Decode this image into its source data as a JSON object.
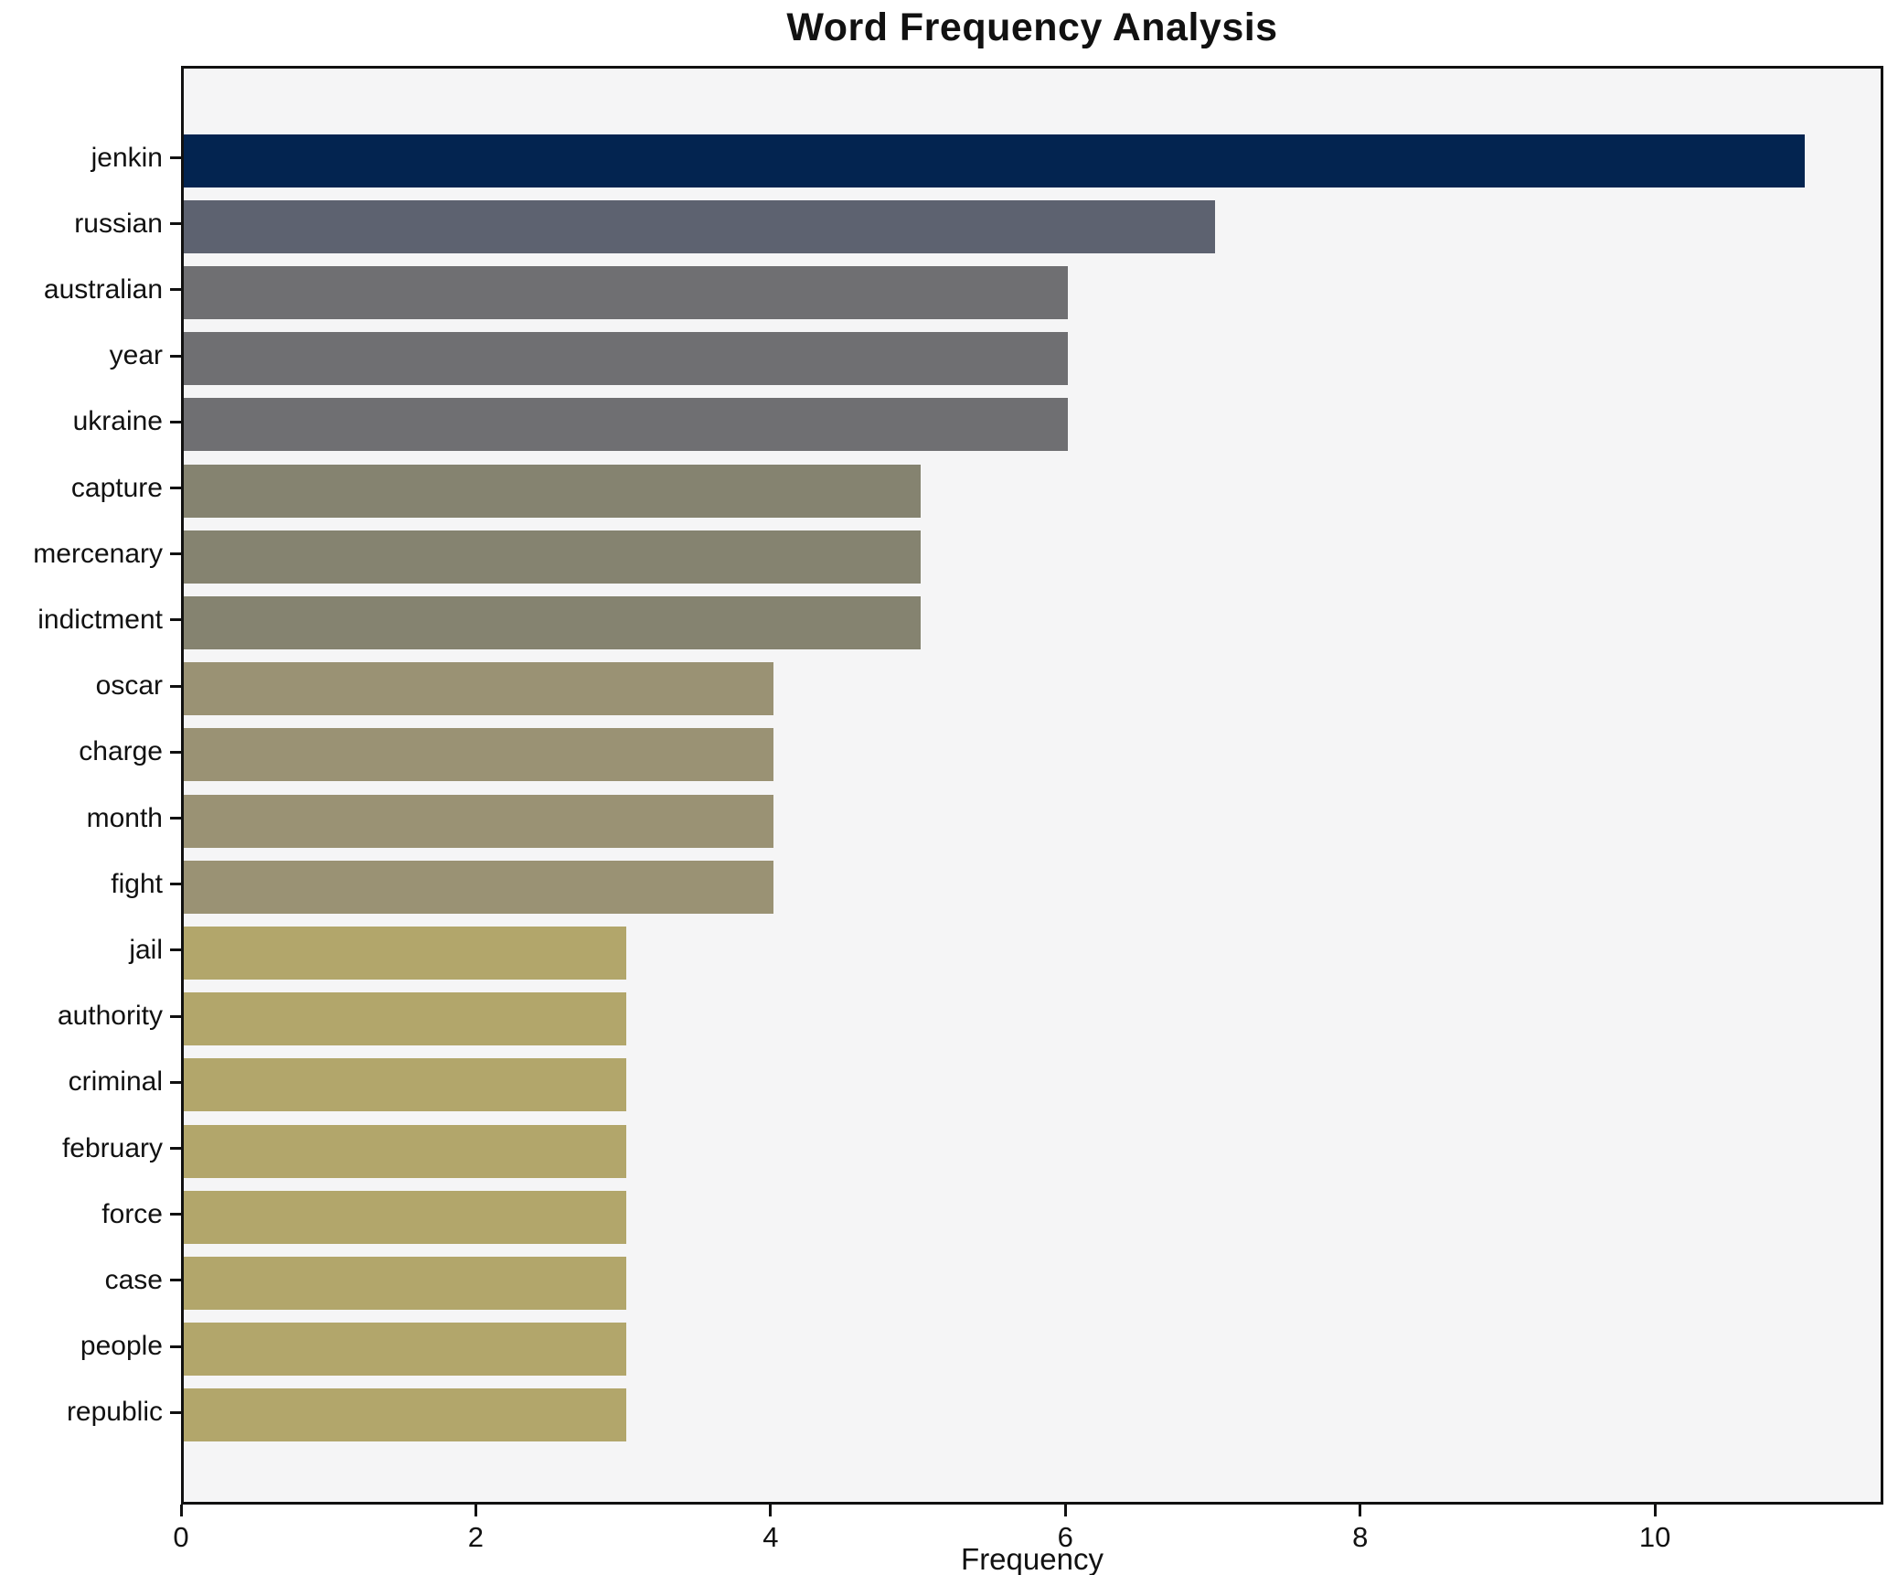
{
  "title": "Word Frequency Analysis",
  "chart_data": {
    "type": "bar",
    "orientation": "horizontal",
    "title": "Word Frequency Analysis",
    "xlabel": "Frequency",
    "ylabel": "",
    "xlim": [
      0,
      11.55
    ],
    "x_ticks": [
      0,
      2,
      4,
      6,
      8,
      10
    ],
    "grid": false,
    "legend": "none",
    "plot_background": "#f5f5f6",
    "figure_background": "#ffffff",
    "spine_color": "#111111",
    "categories": [
      "jenkin",
      "russian",
      "australian",
      "year",
      "ukraine",
      "capture",
      "mercenary",
      "indictment",
      "oscar",
      "charge",
      "month",
      "fight",
      "jail",
      "authority",
      "criminal",
      "february",
      "force",
      "case",
      "people",
      "republic"
    ],
    "values": [
      11,
      7,
      6,
      6,
      6,
      5,
      5,
      5,
      4,
      4,
      4,
      4,
      3,
      3,
      3,
      3,
      3,
      3,
      3,
      3
    ],
    "bar_colors": [
      "#032450",
      "#5d6270",
      "#6f6f72",
      "#6f6f72",
      "#6f6f72",
      "#858370",
      "#858370",
      "#858370",
      "#9a9274",
      "#9a9274",
      "#9a9274",
      "#9a9274",
      "#b2a66b",
      "#b2a66b",
      "#b2a66b",
      "#b2a66b",
      "#b2a66b",
      "#b2a66b",
      "#b2a66b",
      "#b2a66b"
    ],
    "colormap": "cividis-by-value"
  }
}
